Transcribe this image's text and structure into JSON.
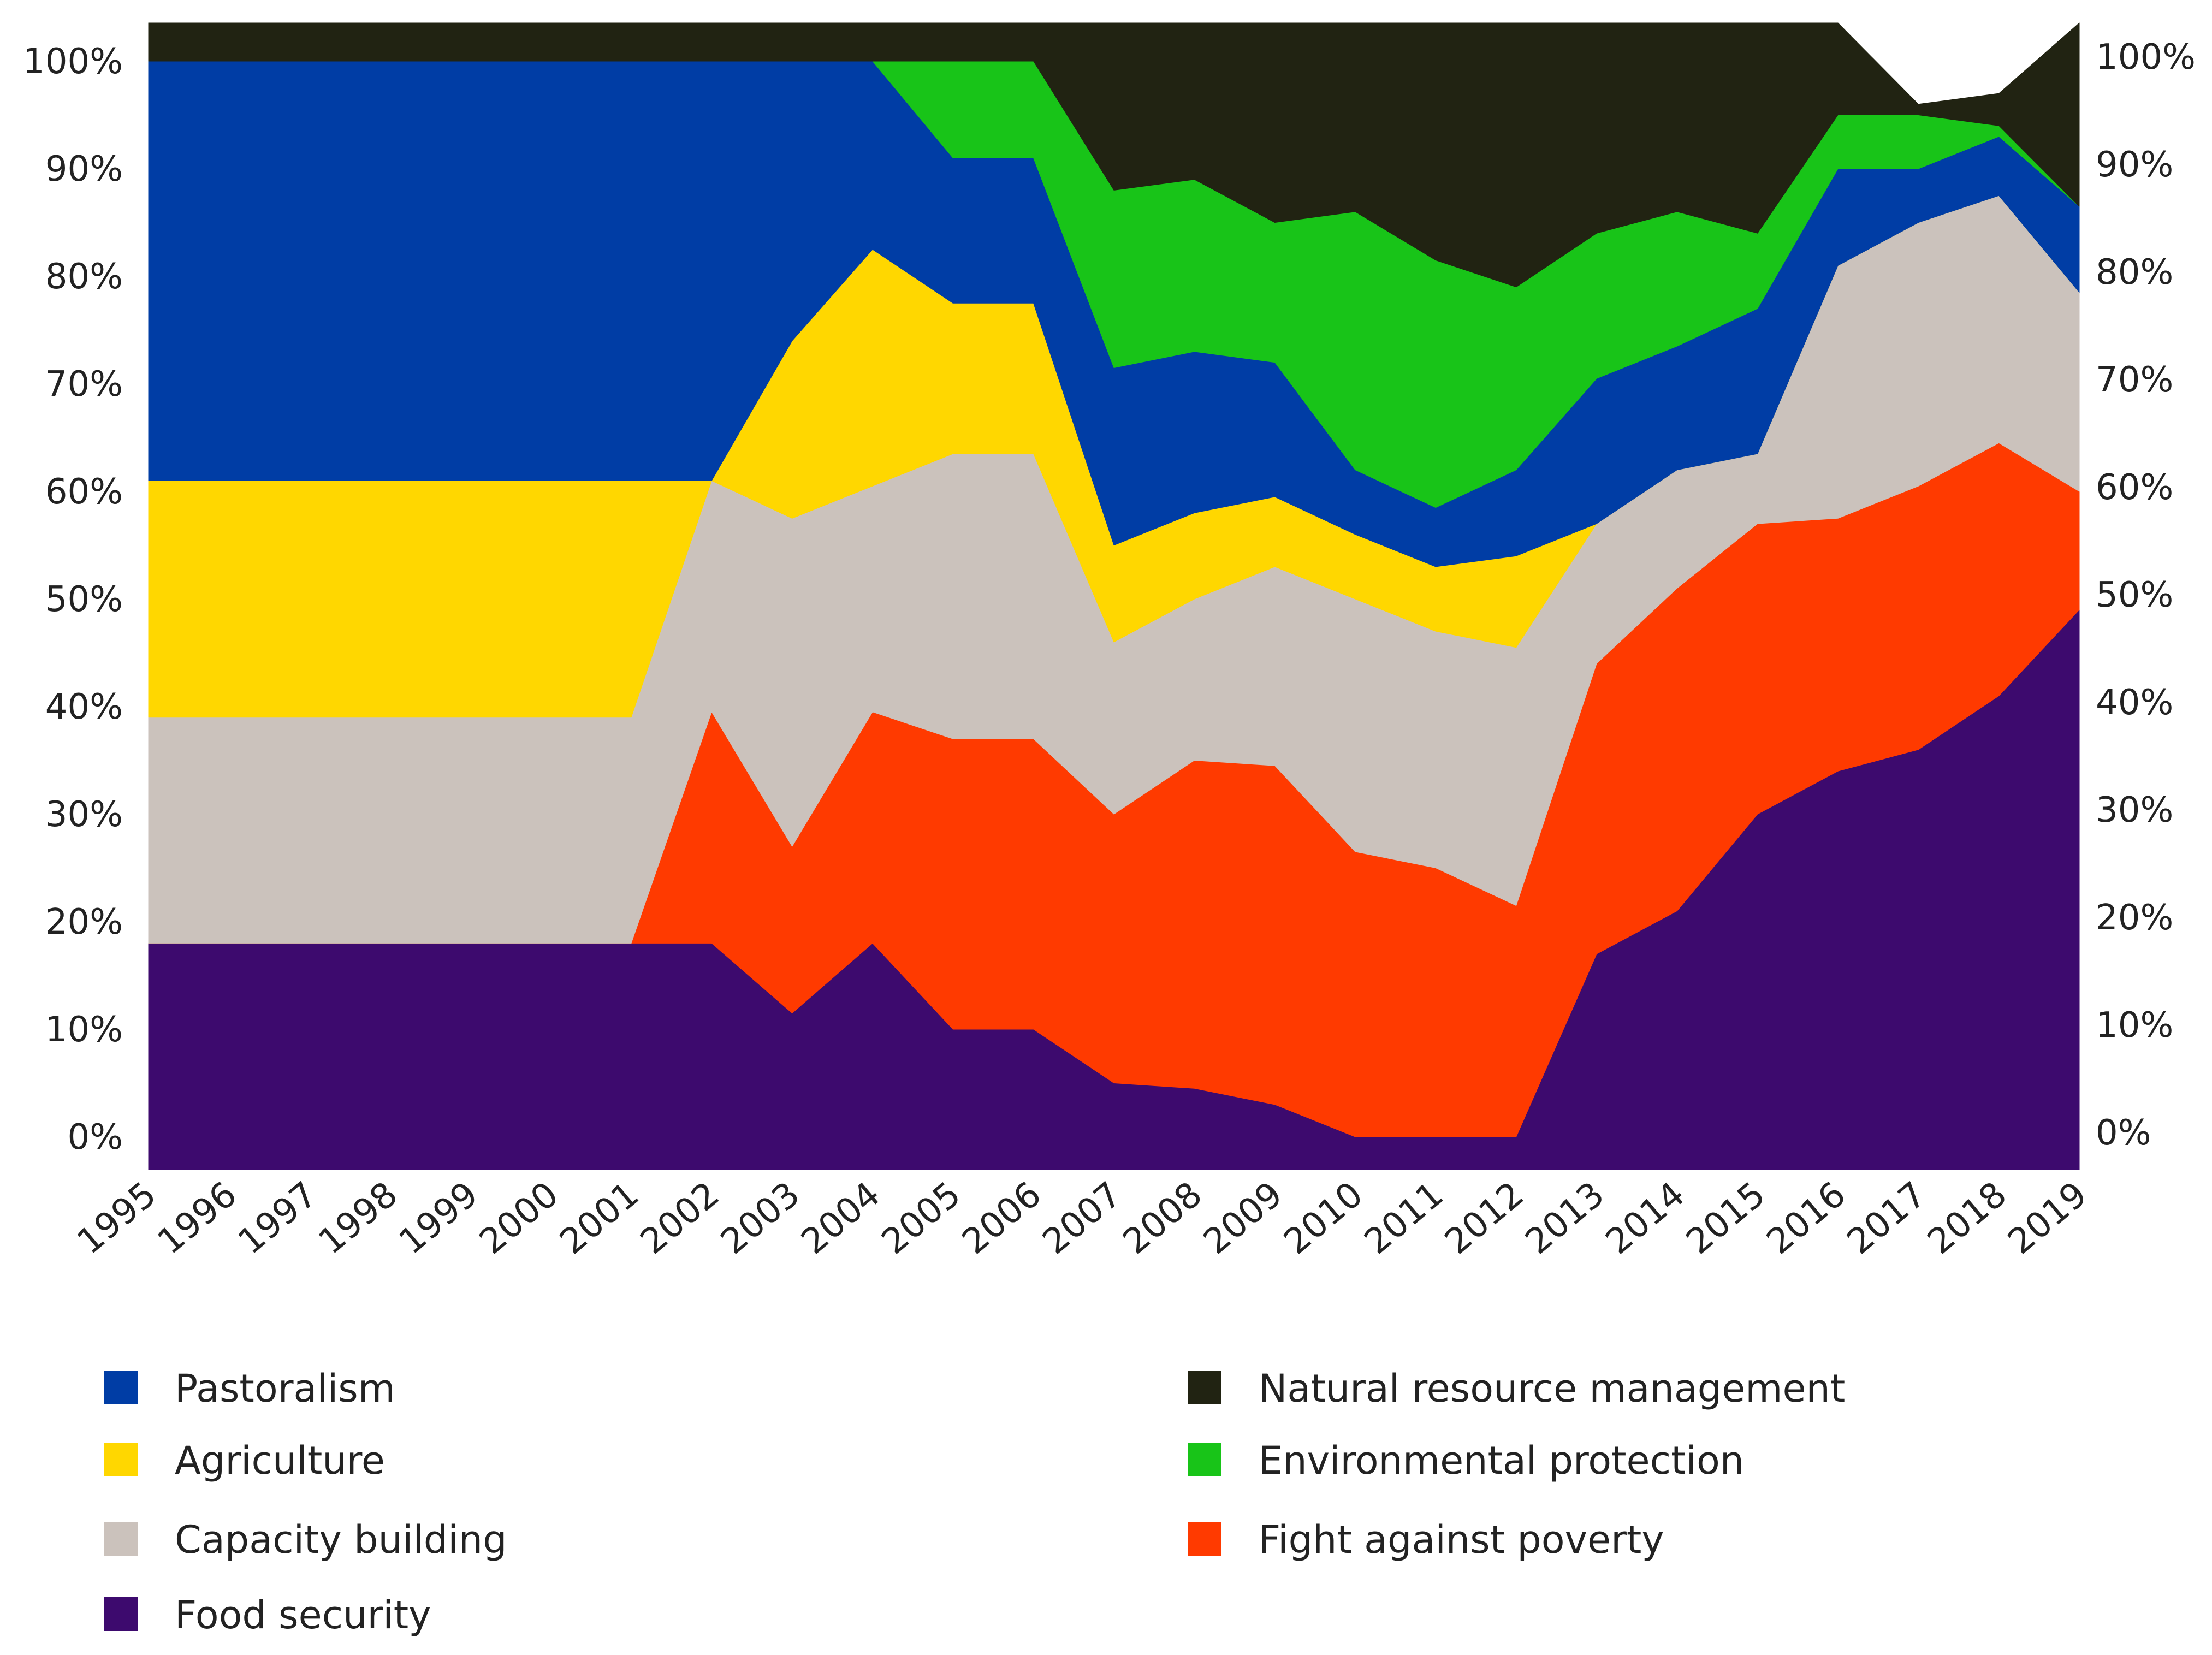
{
  "chart_data": {
    "type": "area",
    "stacked": true,
    "normalized": true,
    "categories": [
      "1995",
      "1996",
      "1997",
      "1998",
      "1999",
      "2000",
      "2001",
      "2002",
      "2003",
      "2004",
      "2005",
      "2006",
      "2007",
      "2008",
      "2009",
      "2010",
      "2011",
      "2012",
      "2013",
      "2014",
      "2015",
      "2016",
      "2017",
      "2018",
      "2019"
    ],
    "series": [
      {
        "name": "Food security",
        "color": "#3d0a6e",
        "values": [
          18,
          18,
          18,
          18,
          18,
          18,
          18,
          18,
          11.5,
          18,
          10,
          10,
          5,
          4.5,
          3,
          0,
          0,
          0,
          17,
          21,
          30,
          34,
          36,
          41,
          49
        ]
      },
      {
        "name": "Fight against poverty",
        "color": "#ff3a00",
        "values": [
          0,
          0,
          0,
          0,
          0,
          0,
          0,
          21.5,
          15.5,
          21.5,
          27,
          27,
          25,
          30.5,
          31.5,
          26.5,
          25,
          21.5,
          27,
          30,
          27,
          23.5,
          24.5,
          23.5,
          11
        ]
      },
      {
        "name": "Capacity building",
        "color": "#cbc2bc",
        "values": [
          21,
          21,
          21,
          21,
          21,
          21,
          21,
          21.5,
          30.5,
          21,
          26.5,
          26.5,
          16,
          15,
          18.5,
          23.5,
          22,
          24,
          13,
          11,
          6.5,
          23.5,
          24.5,
          23,
          18.5
        ]
      },
      {
        "name": "Agriculture",
        "color": "#ffd700",
        "values": [
          22,
          22,
          22,
          22,
          22,
          22,
          22,
          0,
          16.5,
          22,
          14,
          14,
          9,
          8,
          6.5,
          6,
          6,
          8.5,
          0,
          0,
          0,
          0,
          0,
          0,
          0
        ]
      },
      {
        "name": "Pastoralism",
        "color": "#003da5",
        "values": [
          39,
          39,
          39,
          39,
          39,
          39,
          39,
          39,
          26,
          17.5,
          13.5,
          13.5,
          16.5,
          15,
          12.5,
          6,
          5.5,
          8,
          13.5,
          11.5,
          13.5,
          9,
          5,
          5.5,
          8
        ]
      },
      {
        "name": "Environmental protection",
        "color": "#18c418",
        "values": [
          0,
          0,
          0,
          0,
          0,
          0,
          0,
          0,
          0,
          0,
          9,
          9,
          16.5,
          16,
          13,
          24,
          23,
          17,
          13.5,
          12.5,
          7,
          5,
          5,
          1,
          0
        ]
      },
      {
        "name": "Natural resource management",
        "color": "#212312",
        "values": [
          0,
          0,
          0,
          0,
          0,
          0,
          0,
          0,
          0,
          0,
          0,
          0,
          12,
          11.5,
          15,
          14,
          18.5,
          21,
          16,
          14,
          16,
          5,
          1,
          3,
          13.5
        ]
      }
    ],
    "y_axis": {
      "min": 0,
      "max": 100,
      "ticks": [
        0,
        10,
        20,
        30,
        40,
        50,
        60,
        70,
        80,
        90,
        100
      ],
      "tick_labels": [
        "0%",
        "10%",
        "20%",
        "30%",
        "40%",
        "50%",
        "60%",
        "70%",
        "80%",
        "90%",
        "100%"
      ],
      "shown_on": [
        "left",
        "right"
      ]
    },
    "x_tick_labels": [
      "1995",
      "1996",
      "1997",
      "1998",
      "1999",
      "2000",
      "2001",
      "2002",
      "2003",
      "2004",
      "2005",
      "2006",
      "2007",
      "2008",
      "2009",
      "2010",
      "2011",
      "2012",
      "2013",
      "2014",
      "2015",
      "2016",
      "2017",
      "2018",
      "2019"
    ],
    "title": "",
    "xlabel": "",
    "ylabel": "",
    "grid": false,
    "legend": {
      "placement": "bottom",
      "columns": [
        [
          "Pastoralism",
          "Agriculture",
          "Capacity building",
          "Food security"
        ],
        [
          "Natural resource management",
          "Environmental protection",
          "Fight against poverty"
        ]
      ]
    }
  }
}
